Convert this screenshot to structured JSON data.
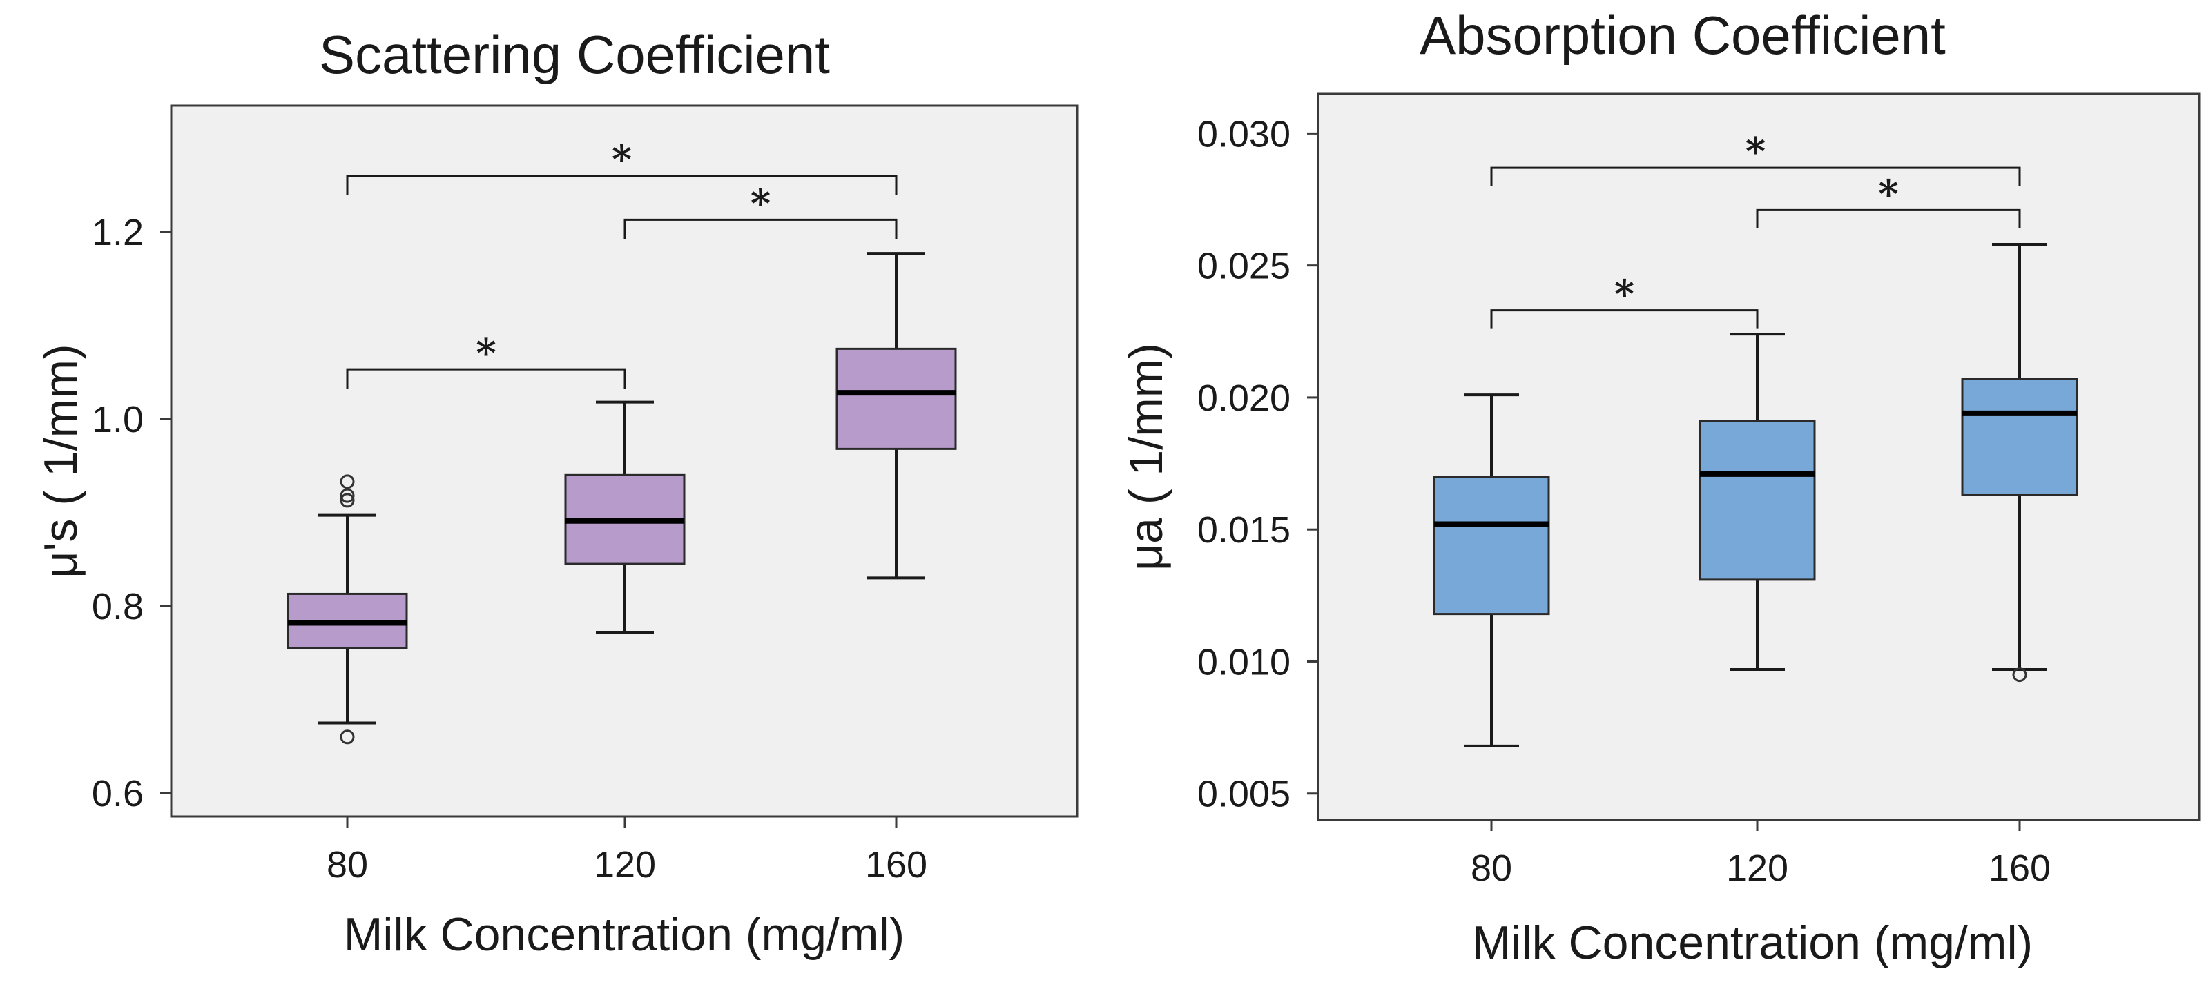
{
  "chart_data": [
    {
      "type": "box",
      "title": "Scattering Coefficient",
      "xlabel": "Milk Concentration (mg/ml)",
      "ylabel": "μ's ( 1/mm)",
      "categories": [
        "80",
        "120",
        "160"
      ],
      "ylim": [
        0.575,
        1.335
      ],
      "yticks": [
        0.6,
        0.8,
        1.0,
        1.2
      ],
      "ytick_labels": [
        "0.6",
        "0.8",
        "1.0",
        "1.2"
      ],
      "box_color": "#b79bcb",
      "boxes": [
        {
          "category": "80",
          "whisker_low": 0.675,
          "q1": 0.755,
          "median": 0.782,
          "q3": 0.813,
          "whisker_high": 0.897,
          "outliers": [
            0.66,
            0.913,
            0.918,
            0.933
          ]
        },
        {
          "category": "120",
          "whisker_low": 0.772,
          "q1": 0.845,
          "median": 0.891,
          "q3": 0.94,
          "whisker_high": 1.018,
          "outliers": []
        },
        {
          "category": "160",
          "whisker_low": 0.83,
          "q1": 0.968,
          "median": 1.028,
          "q3": 1.075,
          "whisker_high": 1.177,
          "outliers": []
        }
      ],
      "significance": [
        {
          "from": "80",
          "to": "120",
          "y": 1.053,
          "label": "*"
        },
        {
          "from": "80",
          "to": "160",
          "y": 1.26,
          "label": "*"
        },
        {
          "from": "120",
          "to": "160",
          "y": 1.213,
          "label": "*"
        }
      ]
    },
    {
      "type": "box",
      "title": "Absorption Coefficient",
      "xlabel": "Milk Concentration (mg/ml)",
      "ylabel": "μa ( 1/mm)",
      "categories": [
        "80",
        "120",
        "160"
      ],
      "ylim": [
        0.004,
        0.0315
      ],
      "yticks": [
        0.005,
        0.01,
        0.015,
        0.02,
        0.025,
        0.03
      ],
      "ytick_labels": [
        "0.005",
        "0.010",
        "0.015",
        "0.020",
        "0.025",
        "0.030"
      ],
      "box_color": "#78a8d8",
      "boxes": [
        {
          "category": "80",
          "whisker_low": 0.0068,
          "q1": 0.0118,
          "median": 0.0152,
          "q3": 0.017,
          "whisker_high": 0.0201,
          "outliers": []
        },
        {
          "category": "120",
          "whisker_low": 0.0097,
          "q1": 0.0131,
          "median": 0.0171,
          "q3": 0.0191,
          "whisker_high": 0.0224,
          "outliers": []
        },
        {
          "category": "160",
          "whisker_low": 0.0097,
          "q1": 0.0163,
          "median": 0.0194,
          "q3": 0.0207,
          "whisker_high": 0.0258,
          "outliers": [
            0.0095
          ]
        }
      ],
      "significance": [
        {
          "from": "80",
          "to": "120",
          "y": 0.0233,
          "label": "*"
        },
        {
          "from": "80",
          "to": "160",
          "y": 0.0287,
          "label": "*"
        },
        {
          "from": "120",
          "to": "160",
          "y": 0.0271,
          "label": "*"
        }
      ]
    }
  ]
}
